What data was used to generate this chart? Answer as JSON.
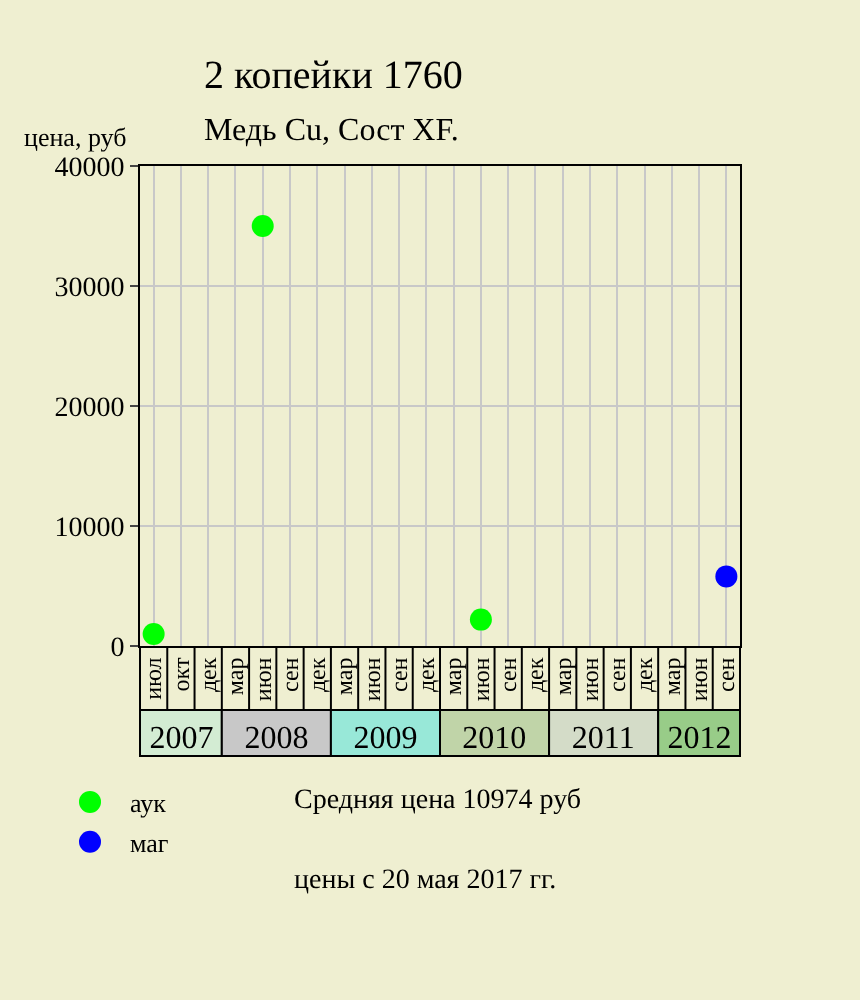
{
  "chart_data": {
    "type": "scatter",
    "title": "2 копейки 1760",
    "subtitle": "Медь Cu, Сост XF.",
    "ylabel": "цена, руб",
    "categories": [
      "июл",
      "окт",
      "дек",
      "мар",
      "июн",
      "сен",
      "дек",
      "мар",
      "июн",
      "сен",
      "дек",
      "мар",
      "июн",
      "сен",
      "дек",
      "мар",
      "июн",
      "сен",
      "дек",
      "мар",
      "июн",
      "сен"
    ],
    "series": [
      {
        "name": "аук",
        "color": "#00ff00",
        "values": [
          1000,
          null,
          null,
          null,
          35000,
          null,
          null,
          null,
          null,
          null,
          null,
          null,
          2200,
          null,
          null,
          null,
          null,
          null,
          null,
          null,
          null,
          null
        ]
      },
      {
        "name": "маг",
        "color": "#0000ff",
        "values": [
          null,
          null,
          null,
          null,
          null,
          null,
          null,
          null,
          null,
          null,
          null,
          null,
          null,
          null,
          null,
          null,
          null,
          null,
          null,
          null,
          null,
          5800
        ]
      }
    ],
    "x2lim": [
      "2007-04-15",
      "2012-10-15"
    ],
    "x2ticks": [
      {
        "value": "2007-09-01",
        "label": "2007"
      },
      {
        "value": "2008-07-15",
        "label": "2008"
      },
      {
        "value": "2009-07-15",
        "label": "2009"
      },
      {
        "value": "2010-07-15",
        "label": "2010"
      },
      {
        "value": "2011-07-15",
        "label": "2011"
      },
      {
        "value": "2012-06-01",
        "label": "2012"
      }
    ],
    "ylim": [
      0,
      40000
    ],
    "yticks": [
      0,
      10000,
      20000,
      30000,
      40000
    ],
    "annotations": [
      "Средняя цена 10974 руб",
      "цены с 20 мая 2017 гг."
    ],
    "grid": true,
    "legend": "bottom left",
    "marker": "circle"
  }
}
